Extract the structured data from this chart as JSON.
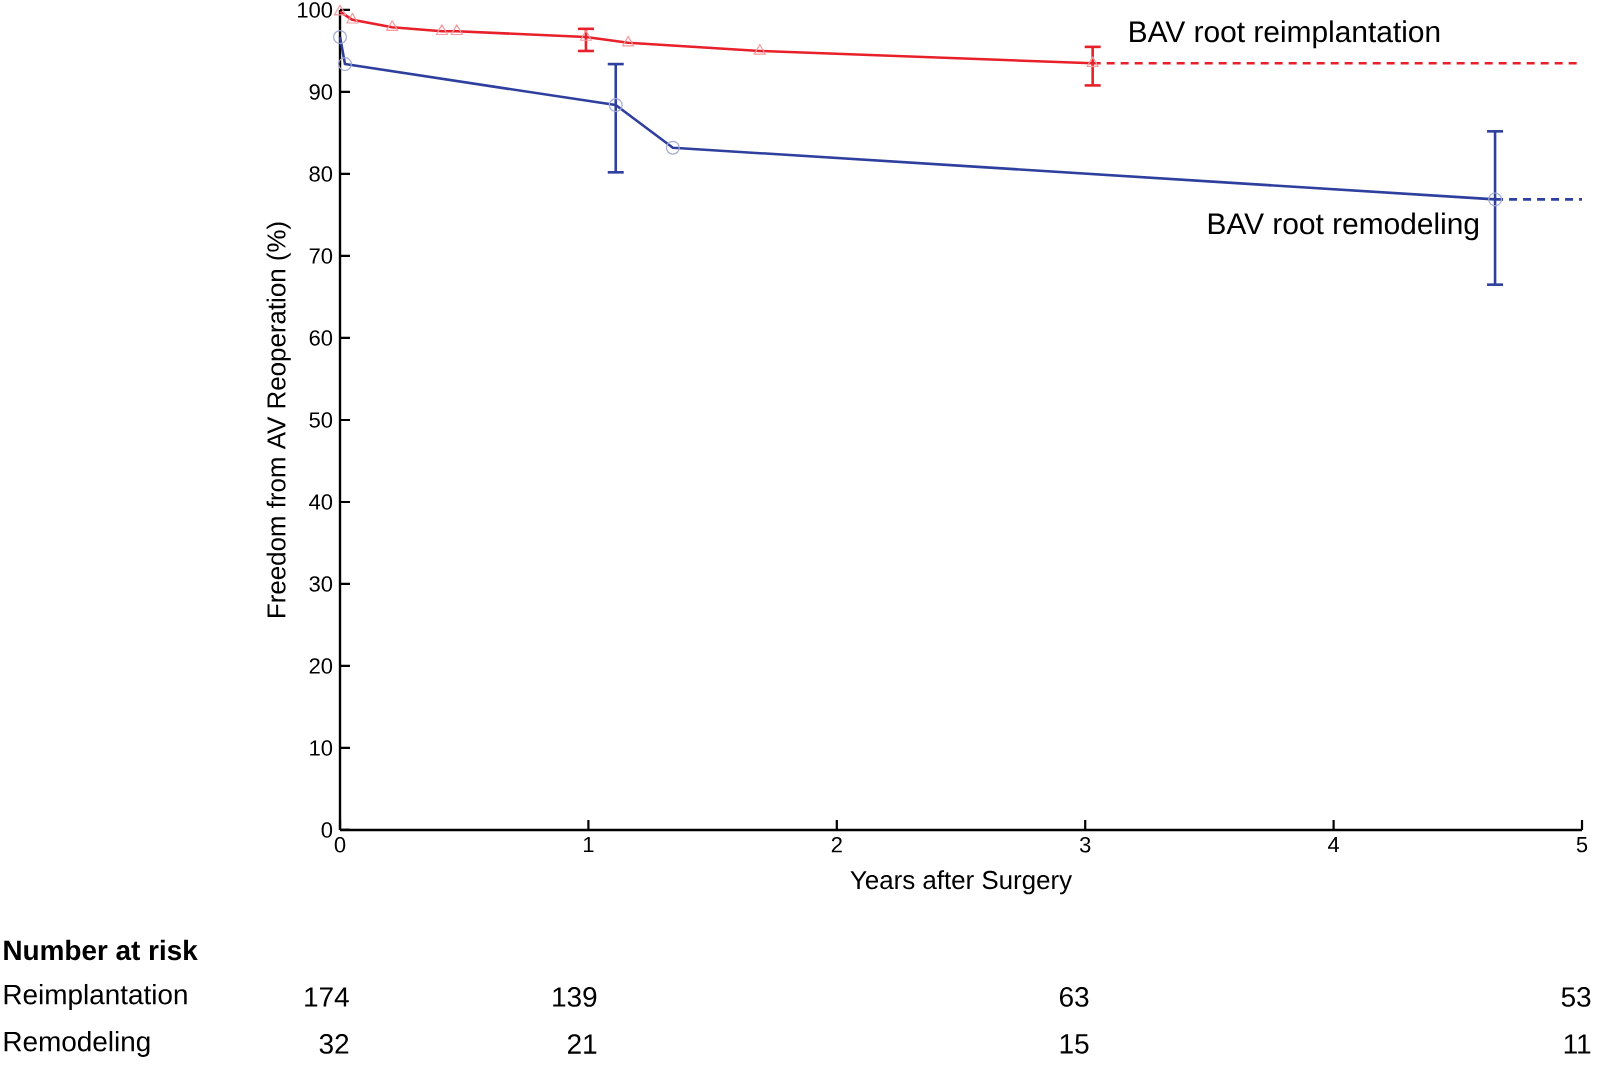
{
  "chart_data": {
    "type": "line",
    "xlabel": "Years after Surgery",
    "ylabel": "Freedom from AV Reoperation (%)",
    "xlim": [
      0,
      5
    ],
    "ylim": [
      0,
      100
    ],
    "xticks": [
      0,
      1,
      2,
      3,
      4,
      5
    ],
    "yticks": [
      0,
      10,
      20,
      30,
      40,
      50,
      60,
      70,
      80,
      90,
      100
    ],
    "grid": false,
    "legend": false,
    "series": [
      {
        "name": "BAV root reimplantation",
        "color": "#e8202a",
        "marker": "triangle",
        "line_style": "solid",
        "x": [
          0,
          0.05,
          0.21,
          0.41,
          0.47,
          0.99,
          1.16,
          1.69,
          3.03
        ],
        "values": [
          99.8,
          98.8,
          97.9,
          97.4,
          97.4,
          96.7,
          96.0,
          95.0,
          93.5
        ],
        "errors": [
          null,
          null,
          null,
          null,
          null,
          [
            95.0,
            97.7
          ],
          null,
          null,
          [
            90.8,
            95.5
          ]
        ]
      },
      {
        "color": "#e8202a",
        "marker": "none",
        "line_style": "dashed",
        "x": [
          3.03,
          5
        ],
        "values": [
          93.5,
          93.5
        ]
      },
      {
        "name": "BAV root remodeling",
        "color": "#2e3f9e",
        "marker": "circle",
        "line_style": "solid",
        "x": [
          0,
          0.02,
          1.11,
          1.34,
          4.65
        ],
        "values": [
          96.7,
          93.4,
          88.4,
          83.2,
          76.9
        ],
        "errors": [
          null,
          null,
          [
            80.2,
            93.4
          ],
          null,
          [
            66.5,
            85.2
          ]
        ]
      },
      {
        "color": "#2e3f9e",
        "marker": "none",
        "line_style": "dashed",
        "x": [
          4.65,
          5
        ],
        "values": [
          76.9,
          76.9
        ]
      }
    ],
    "annotations": [
      "Number at risk",
      "Reimplantation",
      "174",
      "139",
      "63",
      "53",
      "Remodeling",
      "32",
      "21",
      "15",
      "11"
    ]
  }
}
